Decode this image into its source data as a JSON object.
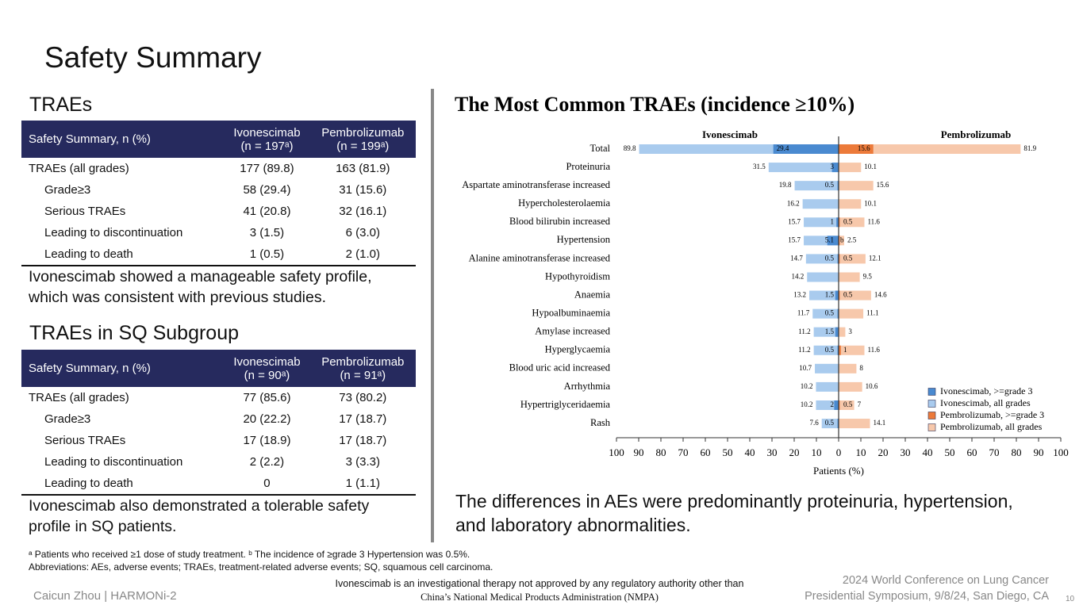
{
  "title": "Safety Summary",
  "section1": {
    "heading": "TRAEs",
    "table": {
      "header": [
        "Safety Summary, n (%)",
        "Ivonescimab\n(n = 197ᵃ)",
        "Pembrolizumab\n(n = 199ᵃ)"
      ],
      "rows": [
        [
          "TRAEs (all grades)",
          "177 (89.8)",
          "163 (81.9)"
        ],
        [
          "Grade≥3",
          "58 (29.4)",
          "31 (15.6)"
        ],
        [
          "Serious TRAEs",
          "41 (20.8)",
          "32 (16.1)"
        ],
        [
          "Leading to discontinuation",
          "3 (1.5)",
          "6 (3.0)"
        ],
        [
          "Leading to death",
          "1 (0.5)",
          "2 (1.0)"
        ]
      ]
    },
    "note": [
      "Ivonescimab showed a manageable safety profile,",
      "which was consistent with previous studies."
    ]
  },
  "section2": {
    "heading": "TRAEs in SQ Subgroup",
    "table": {
      "header": [
        "Safety Summary, n (%)",
        "Ivonescimab\n(n = 90ᵃ)",
        "Pembrolizumab\n(n = 91ᵃ)"
      ],
      "rows": [
        [
          "TRAEs (all grades)",
          "77 (85.6)",
          "73 (80.2)"
        ],
        [
          "Grade≥3",
          "20 (22.2)",
          "17 (18.7)"
        ],
        [
          "Serious TRAEs",
          "17 (18.9)",
          "17 (18.7)"
        ],
        [
          "Leading to discontinuation",
          "2 (2.2)",
          "3 (3.3)"
        ],
        [
          "Leading to death",
          "0",
          "1 (1.1)"
        ]
      ]
    },
    "note": [
      "Ivonescimab also demonstrated a tolerable safety",
      "profile in SQ patients."
    ]
  },
  "chart_data": {
    "type": "butterfly-bar",
    "title": "The Most Common TRAEs (incidence ≥10%)",
    "panel_labels": [
      "Ivonescimab",
      "Pembrolizumab"
    ],
    "categories": [
      "Total",
      "Proteinuria",
      "Aspartate aminotransferase increased",
      "Hypercholesterolaemia",
      "Blood bilirubin increased",
      "Hypertension",
      "Alanine aminotransferase increased",
      "Hypothyroidism",
      "Anaemia",
      "Hypoalbuminaemia",
      "Amylase increased",
      "Hyperglycaemia",
      "Blood uric acid increased",
      "Arrhythmia",
      "Hypertriglyceridaemia",
      "Rash"
    ],
    "series": [
      {
        "name": "Ivonescimab, >=grade 3",
        "color": "#4a8ad0",
        "side": "left",
        "level": "grade3",
        "values": [
          29.4,
          3.0,
          0.5,
          null,
          1.0,
          5.1,
          0.5,
          null,
          1.5,
          0.5,
          1.5,
          0.5,
          null,
          null,
          2.0,
          0.5
        ]
      },
      {
        "name": "Ivonescimab, all grades",
        "color": "#a9cbee",
        "side": "left",
        "level": "all",
        "values": [
          89.8,
          31.5,
          19.8,
          16.2,
          15.7,
          15.7,
          14.7,
          14.2,
          13.2,
          11.7,
          11.2,
          11.2,
          10.7,
          10.2,
          10.2,
          7.6
        ]
      },
      {
        "name": "Pembrolizumab, >=grade 3",
        "color": "#ec7a3a",
        "side": "right",
        "level": "grade3",
        "values": [
          15.6,
          null,
          null,
          null,
          0.5,
          0.5,
          0.5,
          null,
          0.5,
          null,
          null,
          1.0,
          null,
          null,
          0.5,
          null
        ]
      },
      {
        "name": "Pembrolizumab, all grades",
        "color": "#f7c8ab",
        "side": "right",
        "level": "all",
        "values": [
          81.9,
          10.1,
          15.6,
          10.1,
          11.6,
          2.5,
          12.1,
          9.5,
          14.6,
          11.1,
          3.0,
          11.6,
          8.0,
          10.6,
          7.0,
          14.1
        ]
      }
    ],
    "annotations": [
      {
        "text": "b",
        "category": "Hypertension"
      }
    ],
    "xlabel": "Patients (%)",
    "xlim": [
      -100,
      100
    ],
    "xticks": [
      {
        "value": -100,
        "label": "100"
      },
      {
        "value": -90,
        "label": "90"
      },
      {
        "value": -80,
        "label": "80"
      },
      {
        "value": -70,
        "label": "70"
      },
      {
        "value": -60,
        "label": "60"
      },
      {
        "value": -50,
        "label": "50"
      },
      {
        "value": -40,
        "label": "40"
      },
      {
        "value": -30,
        "label": "30"
      },
      {
        "value": -20,
        "label": "20"
      },
      {
        "value": -10,
        "label": "10"
      },
      0,
      10,
      20,
      30,
      40,
      50,
      60,
      70,
      80,
      90,
      100
    ],
    "legend": "lower right",
    "caption": [
      "The differences in AEs were predominantly proteinuria, hypertension,",
      "and laboratory abnormalities."
    ]
  },
  "footnotes": [
    "ᵃ Patients who received ≥1 dose of study treatment. ᵇ The incidence of ≥grade 3 Hypertension was 0.5%.",
    "Abbreviations: AEs, adverse events; TRAEs, treatment-related adverse events; SQ, squamous cell carcinoma."
  ],
  "footer": {
    "author": "Caicun Zhou | HARMONi-2",
    "disclaimer": [
      "Ivonescimab is an investigational therapy not approved by any regulatory authority other than",
      "China’s National Medical Products Administration (NMPA)"
    ],
    "conference": [
      "2024 World Conference on Lung Cancer",
      "Presidential Symposium, 9/8/24, San Diego, CA"
    ],
    "page": "10"
  }
}
